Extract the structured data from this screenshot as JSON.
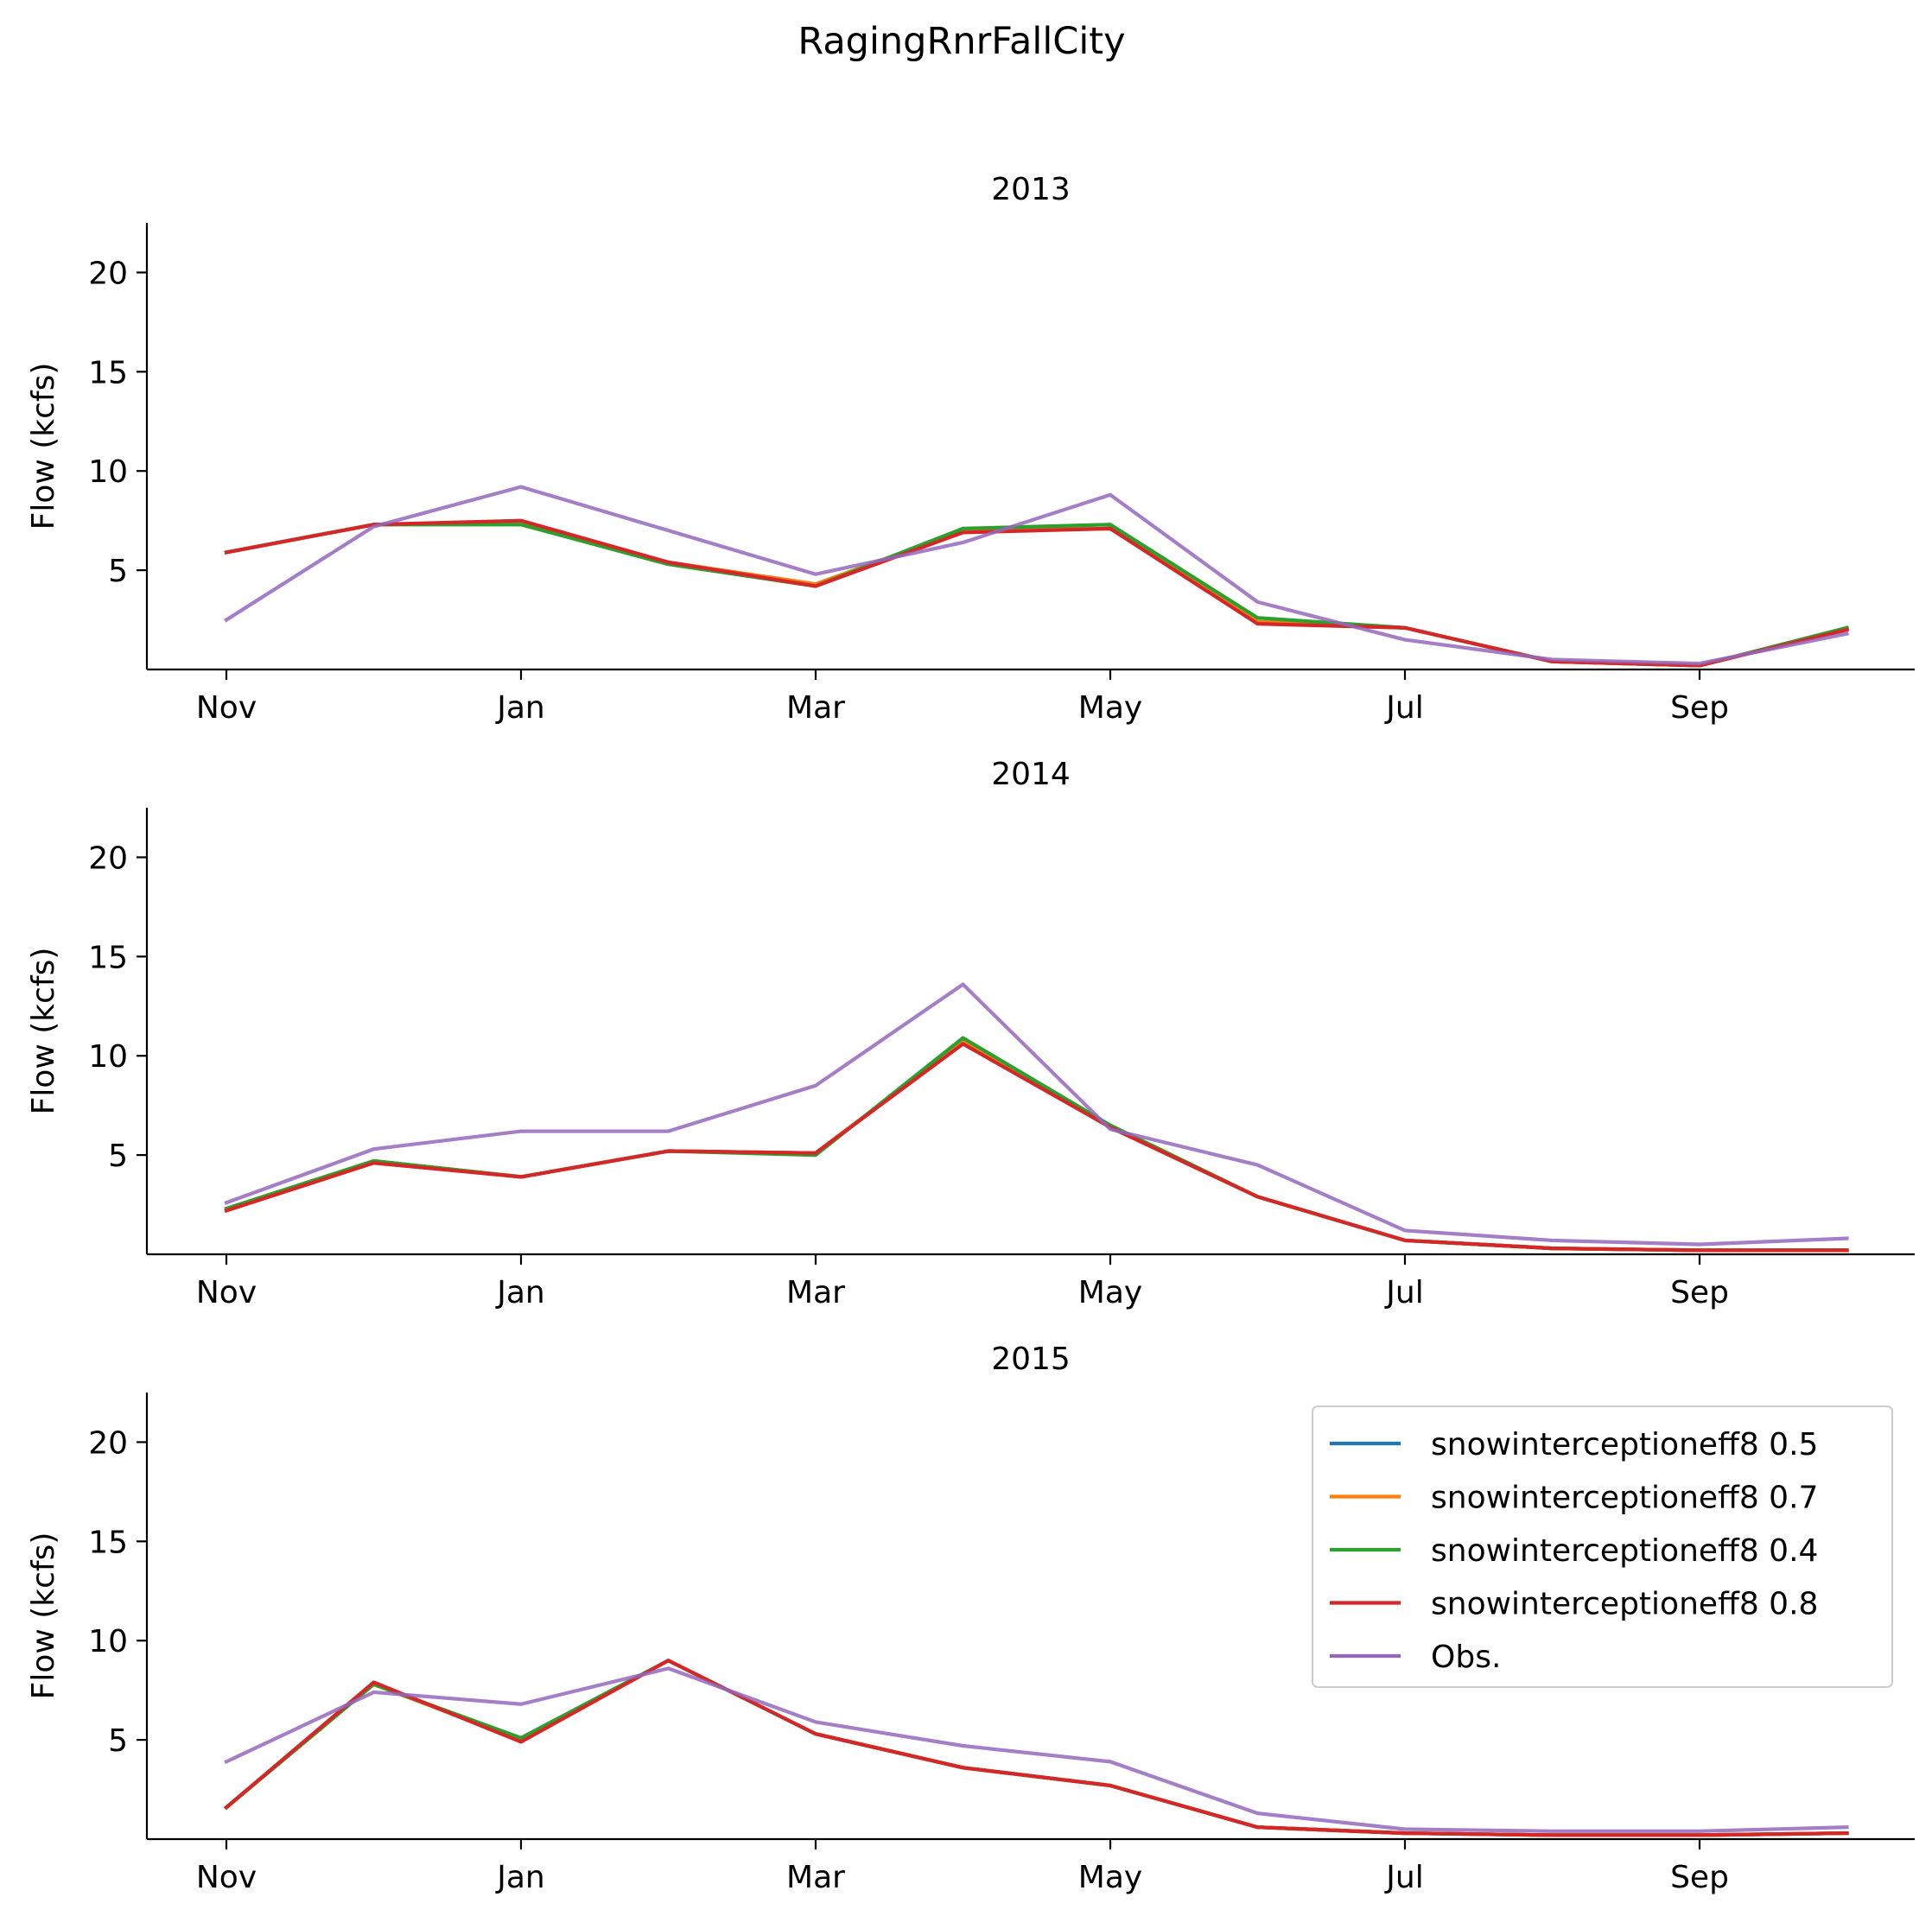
{
  "title": "RagingRnrFallCity",
  "colors": {
    "snowinterceptioneff8 0.5": "#1f77b4",
    "snowinterceptioneff8 0.7": "#ff7f0e",
    "snowinterceptioneff8 0.4": "#2ca02c",
    "snowinterceptioneff8 0.8": "#d62728",
    "Obs.": "#9467bd"
  },
  "chart_data": [
    {
      "type": "line",
      "title": "2013",
      "ylabel": "Flow (kcfs)",
      "xlabel": "",
      "ylim": [
        0,
        22.5
      ],
      "yticks": [
        5,
        10,
        15,
        20
      ],
      "xticks": [
        "Nov",
        "Jan",
        "Mar",
        "May",
        "Jul",
        "Sep"
      ],
      "x": [
        "Nov",
        "Dec",
        "Jan",
        "Feb",
        "Mar",
        "Apr",
        "May",
        "Jun",
        "Jul",
        "Aug",
        "Sep",
        "Oct"
      ],
      "series": [
        {
          "name": "snowinterceptioneff8 0.5",
          "values": [
            5.9,
            7.3,
            7.4,
            5.4,
            4.3,
            7.0,
            7.1,
            2.4,
            2.1,
            0.4,
            0.2,
            2.1
          ]
        },
        {
          "name": "snowinterceptioneff8 0.7",
          "values": [
            5.9,
            7.3,
            7.4,
            5.4,
            4.3,
            7.0,
            7.1,
            2.4,
            2.1,
            0.4,
            0.2,
            2.1
          ]
        },
        {
          "name": "snowinterceptioneff8 0.4",
          "values": [
            5.9,
            7.3,
            7.3,
            5.3,
            4.2,
            7.1,
            7.3,
            2.6,
            2.1,
            0.4,
            0.2,
            2.1
          ]
        },
        {
          "name": "snowinterceptioneff8 0.8",
          "values": [
            5.9,
            7.3,
            7.5,
            5.4,
            4.2,
            6.9,
            7.1,
            2.3,
            2.1,
            0.4,
            0.2,
            2.0
          ]
        },
        {
          "name": "Obs.",
          "values": [
            2.5,
            7.2,
            9.2,
            7.0,
            4.8,
            6.4,
            8.8,
            3.4,
            1.5,
            0.5,
            0.3,
            1.8
          ]
        }
      ]
    },
    {
      "type": "line",
      "title": "2014",
      "ylabel": "Flow (kcfs)",
      "xlabel": "",
      "ylim": [
        0,
        22.5
      ],
      "yticks": [
        5,
        10,
        15,
        20
      ],
      "xticks": [
        "Nov",
        "Jan",
        "Mar",
        "May",
        "Jul",
        "Sep"
      ],
      "x": [
        "Nov",
        "Dec",
        "Jan",
        "Feb",
        "Mar",
        "Apr",
        "May",
        "Jun",
        "Jul",
        "Aug",
        "Sep",
        "Oct"
      ],
      "series": [
        {
          "name": "snowinterceptioneff8 0.5",
          "values": [
            2.3,
            4.7,
            3.9,
            5.2,
            5.1,
            10.7,
            6.4,
            2.9,
            0.7,
            0.3,
            0.2,
            0.2
          ]
        },
        {
          "name": "snowinterceptioneff8 0.7",
          "values": [
            2.3,
            4.7,
            3.9,
            5.2,
            5.1,
            10.7,
            6.4,
            2.9,
            0.7,
            0.3,
            0.2,
            0.2
          ]
        },
        {
          "name": "snowinterceptioneff8 0.4",
          "values": [
            2.3,
            4.7,
            3.9,
            5.2,
            5.0,
            10.9,
            6.5,
            2.9,
            0.7,
            0.3,
            0.2,
            0.2
          ]
        },
        {
          "name": "snowinterceptioneff8 0.8",
          "values": [
            2.2,
            4.6,
            3.9,
            5.2,
            5.1,
            10.6,
            6.4,
            2.9,
            0.7,
            0.3,
            0.2,
            0.2
          ]
        },
        {
          "name": "Obs.",
          "values": [
            2.6,
            5.3,
            6.2,
            6.2,
            8.5,
            13.6,
            6.3,
            4.5,
            1.2,
            0.7,
            0.5,
            0.8
          ]
        }
      ]
    },
    {
      "type": "line",
      "title": "2015",
      "ylabel": "Flow (kcfs)",
      "xlabel": "",
      "ylim": [
        0,
        22.5
      ],
      "yticks": [
        5,
        10,
        15,
        20
      ],
      "xticks": [
        "Nov",
        "Jan",
        "Mar",
        "May",
        "Jul",
        "Sep"
      ],
      "x": [
        "Nov",
        "Dec",
        "Jan",
        "Feb",
        "Mar",
        "Apr",
        "May",
        "Jun",
        "Jul",
        "Aug",
        "Sep",
        "Oct"
      ],
      "legend": "top-right",
      "series": [
        {
          "name": "snowinterceptioneff8 0.5",
          "values": [
            1.6,
            7.8,
            5.0,
            9.0,
            5.3,
            3.6,
            2.7,
            0.6,
            0.3,
            0.2,
            0.2,
            0.3
          ]
        },
        {
          "name": "snowinterceptioneff8 0.7",
          "values": [
            1.6,
            7.8,
            5.0,
            9.0,
            5.3,
            3.6,
            2.7,
            0.6,
            0.3,
            0.2,
            0.2,
            0.3
          ]
        },
        {
          "name": "snowinterceptioneff8 0.4",
          "values": [
            1.6,
            7.8,
            5.1,
            9.0,
            5.3,
            3.6,
            2.7,
            0.6,
            0.3,
            0.2,
            0.2,
            0.3
          ]
        },
        {
          "name": "snowinterceptioneff8 0.8",
          "values": [
            1.6,
            7.9,
            4.9,
            9.0,
            5.3,
            3.6,
            2.7,
            0.6,
            0.3,
            0.2,
            0.2,
            0.3
          ]
        },
        {
          "name": "Obs.",
          "values": [
            3.9,
            7.4,
            6.8,
            8.6,
            5.9,
            4.7,
            3.9,
            1.3,
            0.5,
            0.4,
            0.4,
            0.6
          ]
        }
      ]
    }
  ]
}
